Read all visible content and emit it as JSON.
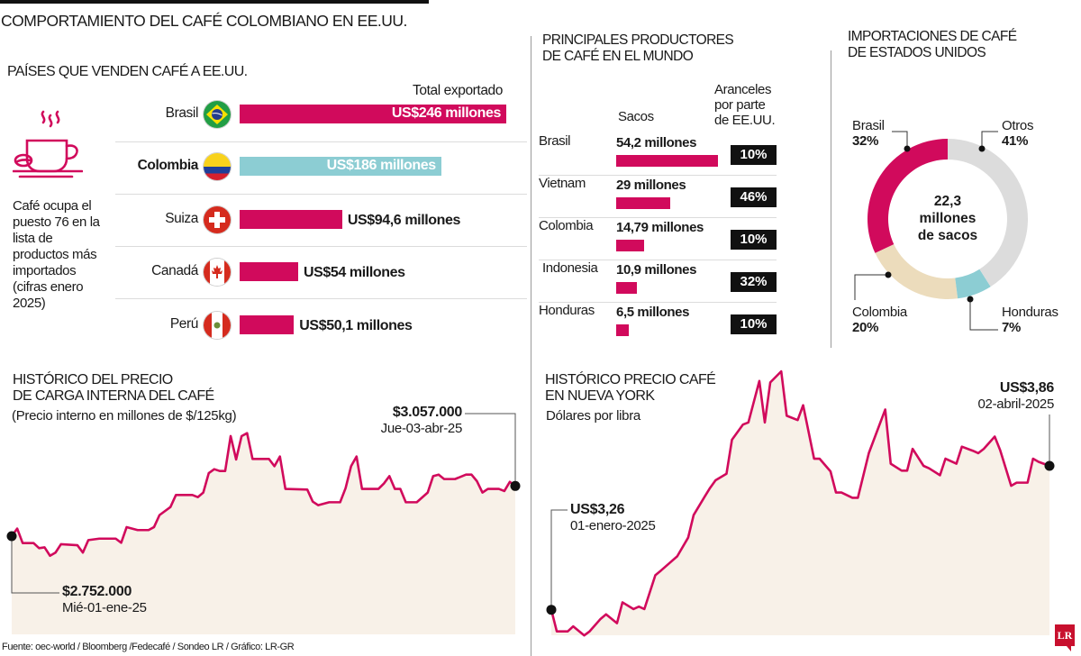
{
  "title": "COMPORTAMIENTO DEL CAFÉ COLOMBIANO EN EE.UU.",
  "note": {
    "lines": [
      "Café ocupa el",
      "puesto 76 en la",
      "lista de",
      "productos más",
      "importados",
      "(cifras enero",
      "2025)"
    ]
  },
  "footer": "Fuente: oec-world / Bloomberg /Fedecafé / Sondeo LR / Gráfico: LR-GR",
  "logo": "LR",
  "colors": {
    "accent": "#d10a5c",
    "highlight": "#8ccdd3",
    "area_fill": "#f8f1e8",
    "others": "#dcdcdc",
    "colombia_slice": "#ecdcbc",
    "badge": "#111111"
  },
  "chart_data": [
    {
      "type": "bar",
      "orientation": "horizontal",
      "title": "PAÍSES QUE VENDEN CAFÉ A EE.UU.",
      "value_header": "Total exportado",
      "unit": "US$ millones",
      "categories": [
        "Brasil",
        "Colombia",
        "Suiza",
        "Canadá",
        "Perú"
      ],
      "values": [
        246,
        186,
        94.6,
        54,
        50.1
      ],
      "labels": [
        "US$246 millones",
        "US$186 millones",
        "US$94,6 millones",
        "US$54 millones",
        "US$50,1 millones"
      ],
      "highlight": "Colombia",
      "flags": [
        "flag-brazil-icon",
        "flag-colombia-icon",
        "flag-switzerland-icon",
        "flag-canada-icon",
        "flag-peru-icon"
      ]
    },
    {
      "type": "bar",
      "orientation": "horizontal",
      "title_lines": [
        "PRINCIPALES PRODUCTORES",
        "DE CAFÉ EN EL MUNDO"
      ],
      "value_header": "Sacos",
      "tariff_header_lines": [
        "Aranceles",
        "por parte",
        "de EE.UU."
      ],
      "categories": [
        "Brasil",
        "Vietnam",
        "Colombia",
        "Indonesia",
        "Honduras"
      ],
      "values": [
        54.2,
        29,
        14.79,
        10.9,
        6.5
      ],
      "labels": [
        "54,2 millones",
        "29 millones",
        "14,79 millones",
        "10,9 millones",
        "6,5 millones"
      ],
      "tariffs": [
        "10%",
        "46%",
        "10%",
        "32%",
        "10%"
      ]
    },
    {
      "type": "pie",
      "donut": true,
      "title_lines": [
        "IMPORTACIONES DE CAFÉ",
        "DE ESTADOS UNIDOS"
      ],
      "center_lines": [
        "22,3",
        "millones",
        "de sacos"
      ],
      "slices": [
        {
          "name": "Otros",
          "value": 41,
          "label": "41%",
          "color": "#dcdcdc"
        },
        {
          "name": "Honduras",
          "value": 7,
          "label": "7%",
          "color": "#8ccdd3"
        },
        {
          "name": "Colombia",
          "value": 20,
          "label": "20%",
          "color": "#ecdcbc"
        },
        {
          "name": "Brasil",
          "value": 32,
          "label": "32%",
          "color": "#d10a5c"
        }
      ]
    },
    {
      "type": "area",
      "title_lines": [
        "HISTÓRICO DEL PRECIO",
        "DE CARGA INTERNA DEL CAFÉ"
      ],
      "subtitle": "(Precio interno en millones de $/125kg)",
      "start_label": {
        "value": "$2.752.000",
        "date": "Mié-01-ene-25"
      },
      "end_label": {
        "value": "$3.057.000",
        "date": "Jue-03-abr-25"
      },
      "x": [
        "2025-01-01",
        "2025-01-02",
        "2025-01-03",
        "2025-01-05",
        "2025-01-06",
        "2025-01-07",
        "2025-01-08",
        "2025-01-09",
        "2025-01-10",
        "2025-01-13",
        "2025-01-14",
        "2025-01-15",
        "2025-01-17",
        "2025-01-20",
        "2025-01-21",
        "2025-01-22",
        "2025-01-24",
        "2025-01-26",
        "2025-01-27",
        "2025-01-28",
        "2025-01-30",
        "2025-01-31",
        "2025-02-03",
        "2025-02-04",
        "2025-02-05",
        "2025-02-06",
        "2025-02-07",
        "2025-02-08",
        "2025-02-09",
        "2025-02-10",
        "2025-02-11",
        "2025-02-12",
        "2025-02-13",
        "2025-02-14",
        "2025-02-17",
        "2025-02-18",
        "2025-02-19",
        "2025-02-20",
        "2025-02-24",
        "2025-02-25",
        "2025-02-26",
        "2025-02-28",
        "2025-03-02",
        "2025-03-03",
        "2025-03-04",
        "2025-03-05",
        "2025-03-06",
        "2025-03-09",
        "2025-03-10",
        "2025-03-11",
        "2025-03-12",
        "2025-03-13",
        "2025-03-14",
        "2025-03-16",
        "2025-03-18",
        "2025-03-19",
        "2025-03-20",
        "2025-03-21",
        "2025-03-23",
        "2025-03-25",
        "2025-03-26",
        "2025-03-27",
        "2025-03-28",
        "2025-03-29",
        "2025-03-31",
        "2025-04-01",
        "2025-04-02",
        "2025-04-03"
      ],
      "y": [
        2.752,
        2.798,
        2.71,
        2.71,
        2.679,
        2.684,
        2.633,
        2.652,
        2.703,
        2.697,
        2.652,
        2.728,
        2.737,
        2.737,
        2.712,
        2.807,
        2.789,
        2.789,
        2.807,
        2.88,
        2.929,
        3.002,
        3.002,
        2.989,
        3.017,
        3.135,
        3.159,
        3.148,
        3.148,
        3.36,
        3.218,
        3.36,
        3.378,
        3.221,
        3.221,
        3.177,
        3.236,
        3.039,
        3.035,
        2.962,
        2.94,
        2.958,
        2.958,
        3.044,
        3.177,
        3.236,
        3.039,
        3.039,
        3.072,
        3.117,
        3.039,
        3.039,
        2.958,
        2.958,
        3.017,
        3.117,
        3.126,
        3.099,
        3.099,
        3.126,
        3.126,
        3.086,
        3.017,
        3.039,
        3.039,
        3.026,
        3.082,
        3.057
      ]
    },
    {
      "type": "area",
      "title_lines": [
        "HISTÓRICO PRECIO CAFÉ",
        "EN NUEVA YORK"
      ],
      "subtitle": "Dólares por libra",
      "start_label": {
        "value": "US$3,26",
        "date": "01-enero-2025"
      },
      "end_label": {
        "value": "US$3,86",
        "date": "02-abril-2025"
      },
      "x": [
        "2025-01-01",
        "2025-01-02",
        "2025-01-04",
        "2025-01-05",
        "2025-01-07",
        "2025-01-08",
        "2025-01-10",
        "2025-01-11",
        "2025-01-13",
        "2025-01-14",
        "2025-01-16",
        "2025-01-17",
        "2025-01-18",
        "2025-01-20",
        "2025-01-21",
        "2025-01-23",
        "2025-01-24",
        "2025-01-26",
        "2025-01-27",
        "2025-01-29",
        "2025-01-30",
        "2025-01-31",
        "2025-02-02",
        "2025-02-03",
        "2025-02-05",
        "2025-02-06",
        "2025-02-08",
        "2025-02-09",
        "2025-02-10",
        "2025-02-12",
        "2025-02-13",
        "2025-02-15",
        "2025-02-16",
        "2025-02-18",
        "2025-02-19",
        "2025-02-21",
        "2025-02-22",
        "2025-02-23",
        "2025-02-25",
        "2025-02-26",
        "2025-02-28",
        "2025-03-03",
        "2025-03-04",
        "2025-03-06",
        "2025-03-07",
        "2025-03-08",
        "2025-03-10",
        "2025-03-11",
        "2025-03-13",
        "2025-03-14",
        "2025-03-16",
        "2025-03-17",
        "2025-03-19",
        "2025-03-20",
        "2025-03-21",
        "2025-03-23",
        "2025-03-24",
        "2025-03-26",
        "2025-03-27",
        "2025-03-29",
        "2025-03-30",
        "2025-03-31",
        "2025-04-02"
      ],
      "y": [
        3.26,
        3.17,
        3.17,
        3.191,
        3.153,
        3.17,
        3.222,
        3.241,
        3.204,
        3.291,
        3.263,
        3.273,
        3.263,
        3.404,
        3.423,
        3.463,
        3.483,
        3.561,
        3.655,
        3.731,
        3.768,
        3.8,
        3.827,
        3.969,
        4.032,
        4.041,
        4.214,
        4.041,
        4.208,
        4.254,
        4.069,
        4.051,
        4.113,
        3.89,
        3.89,
        3.837,
        3.749,
        3.749,
        3.727,
        3.727,
        3.913,
        4.095,
        3.869,
        3.84,
        3.84,
        3.931,
        3.86,
        3.85,
        3.821,
        3.89,
        3.869,
        3.94,
        3.923,
        3.913,
        3.931,
        3.982,
        3.925,
        3.777,
        3.79,
        3.79,
        3.89,
        3.877,
        3.86
      ]
    }
  ]
}
